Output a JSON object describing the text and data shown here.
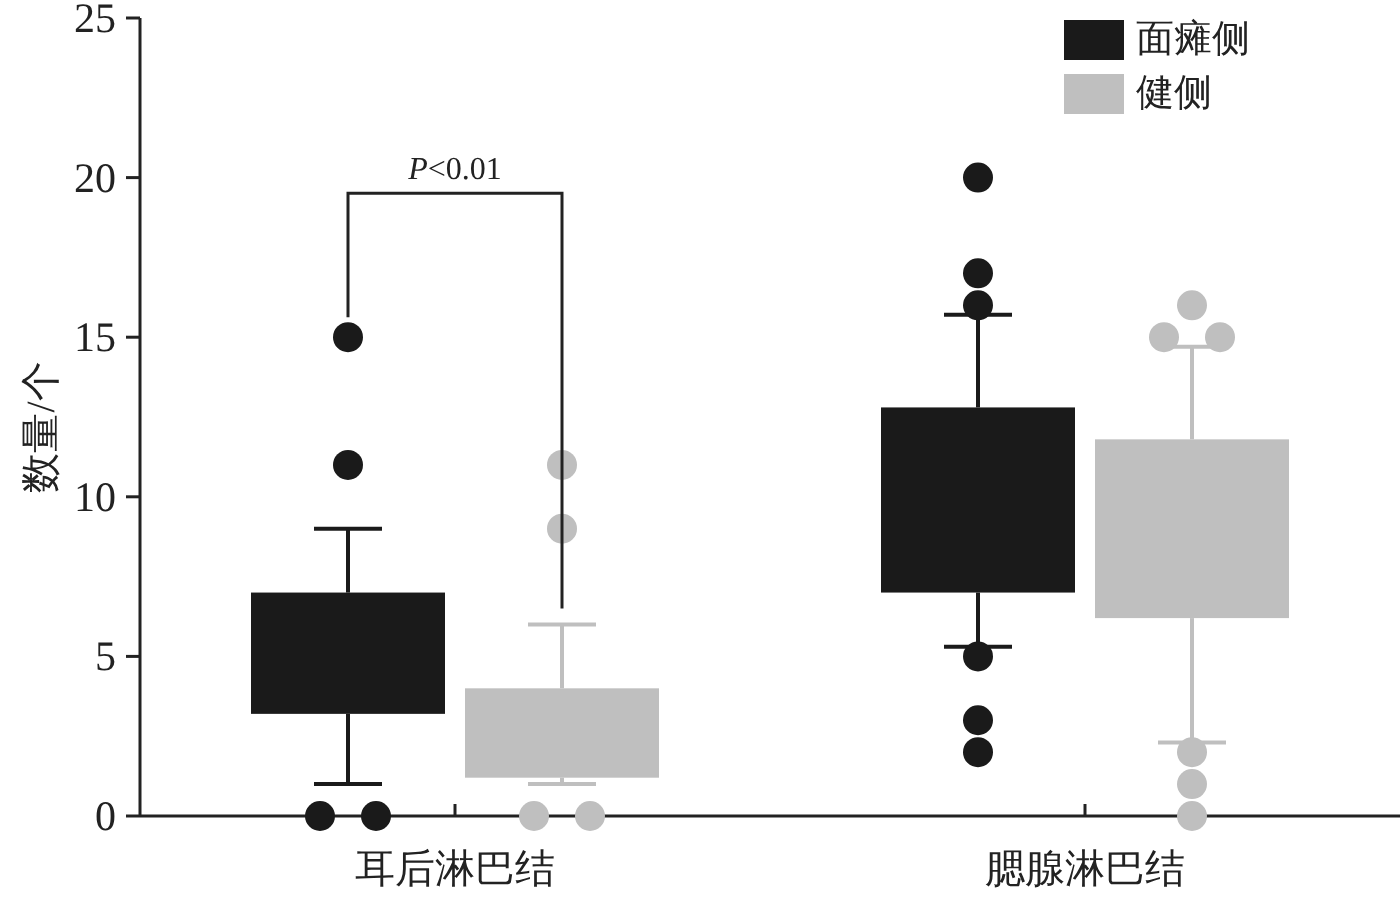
{
  "chart_data": {
    "type": "box",
    "ylabel": "数量/个",
    "categories": [
      "耳后淋巴结",
      "腮腺淋巴结"
    ],
    "ylim": [
      0,
      25
    ],
    "yticks": [
      0,
      5,
      10,
      15,
      20,
      25
    ],
    "grid": false,
    "legend": "top right",
    "annotations": [
      "P<0.01"
    ],
    "series": [
      {
        "name": "面瘫侧",
        "color": "#1a1a1a",
        "boxes": [
          {
            "low": 1,
            "q1": 3.2,
            "q3": 7,
            "high": 9,
            "outliers": [
              15,
              11,
              0,
              0
            ]
          },
          {
            "low": 5.3,
            "q1": 7,
            "q3": 12.8,
            "high": 15.7,
            "outliers": [
              20,
              17,
              16,
              5,
              3,
              2
            ]
          }
        ]
      },
      {
        "name": "健侧",
        "color": "#bfbfbf",
        "boxes": [
          {
            "low": 1,
            "q1": 1.2,
            "q3": 4,
            "high": 6,
            "outliers": [
              11,
              9,
              0,
              0
            ]
          },
          {
            "low": 2.3,
            "q1": 6.2,
            "q3": 11.8,
            "high": 14.7,
            "outliers": [
              16,
              15,
              15,
              2,
              1,
              0
            ]
          }
        ]
      }
    ]
  }
}
